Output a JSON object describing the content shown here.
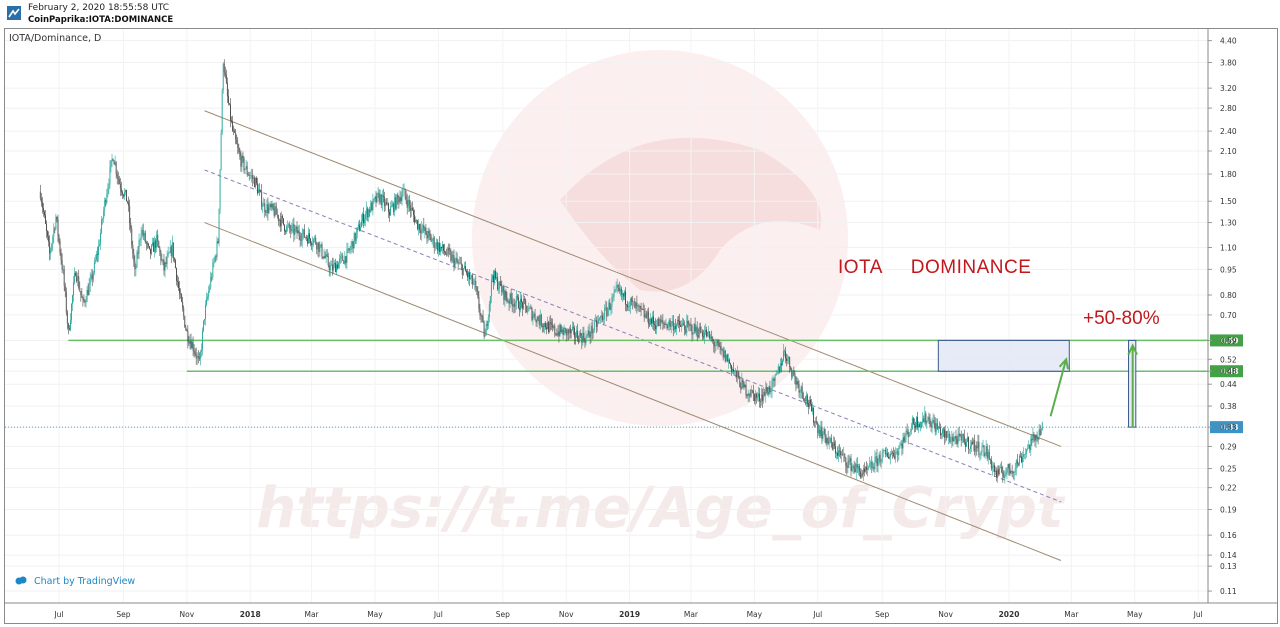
{
  "header": {
    "date": "February 2, 2020 18:55:58 UTC",
    "source": "CoinPaprika:IOTA:DOMINANCE"
  },
  "chart_data": {
    "type": "candlestick",
    "symbol": "IOTA/Dominance, D",
    "title": "",
    "xlabel": "",
    "ylabel": "",
    "scale": "log",
    "ylim": [
      0.105,
      4.6
    ],
    "y_ticks": [
      "4.40",
      "3.80",
      "3.20",
      "2.80",
      "2.40",
      "2.10",
      "1.80",
      "1.50",
      "1.30",
      "1.10",
      "0.95",
      "0.80",
      "0.70",
      "0.59",
      "0.52",
      "0.48",
      "0.44",
      "0.38",
      "0.33",
      "0.29",
      "0.25",
      "0.22",
      "0.19",
      "0.16",
      "0.14",
      "0.13",
      "0.11"
    ],
    "x_ticks": [
      {
        "label": "Jul",
        "date": "2017-07-01"
      },
      {
        "label": "Sep",
        "date": "2017-09-01"
      },
      {
        "label": "Nov",
        "date": "2017-11-01"
      },
      {
        "label": "2018",
        "date": "2018-01-01"
      },
      {
        "label": "Mar",
        "date": "2018-03-01"
      },
      {
        "label": "May",
        "date": "2018-05-01"
      },
      {
        "label": "Jul",
        "date": "2018-07-01"
      },
      {
        "label": "Sep",
        "date": "2018-09-01"
      },
      {
        "label": "Nov",
        "date": "2018-11-01"
      },
      {
        "label": "2019",
        "date": "2019-01-01"
      },
      {
        "label": "Mar",
        "date": "2019-03-01"
      },
      {
        "label": "May",
        "date": "2019-05-01"
      },
      {
        "label": "Jul",
        "date": "2019-07-01"
      },
      {
        "label": "Sep",
        "date": "2019-09-01"
      },
      {
        "label": "Nov",
        "date": "2019-11-01"
      },
      {
        "label": "2020",
        "date": "2020-01-01"
      },
      {
        "label": "Mar",
        "date": "2020-03-01"
      },
      {
        "label": "May",
        "date": "2020-05-01"
      },
      {
        "label": "Jul",
        "date": "2020-07-01"
      }
    ],
    "price_path": [
      [
        "2017-06-13",
        1.6
      ],
      [
        "2017-06-22",
        1.05
      ],
      [
        "2017-06-28",
        1.35
      ],
      [
        "2017-07-05",
        0.92
      ],
      [
        "2017-07-10",
        0.62
      ],
      [
        "2017-07-17",
        0.95
      ],
      [
        "2017-07-24",
        0.75
      ],
      [
        "2017-08-01",
        0.88
      ],
      [
        "2017-08-08",
        1.1
      ],
      [
        "2017-08-15",
        1.55
      ],
      [
        "2017-08-22",
        2.05
      ],
      [
        "2017-08-28",
        1.7
      ],
      [
        "2017-09-05",
        1.5
      ],
      [
        "2017-09-12",
        0.92
      ],
      [
        "2017-09-18",
        1.25
      ],
      [
        "2017-09-26",
        1.05
      ],
      [
        "2017-10-03",
        1.15
      ],
      [
        "2017-10-10",
        0.95
      ],
      [
        "2017-10-18",
        1.1
      ],
      [
        "2017-10-25",
        0.8
      ],
      [
        "2017-11-01",
        0.62
      ],
      [
        "2017-11-08",
        0.56
      ],
      [
        "2017-11-13",
        0.5
      ],
      [
        "2017-11-18",
        0.7
      ],
      [
        "2017-11-25",
        0.92
      ],
      [
        "2017-12-01",
        1.15
      ],
      [
        "2017-12-06",
        3.9
      ],
      [
        "2017-12-10",
        3.0
      ],
      [
        "2017-12-15",
        2.4
      ],
      [
        "2017-12-22",
        2.0
      ],
      [
        "2017-12-28",
        1.85
      ],
      [
        "2018-01-06",
        1.7
      ],
      [
        "2018-01-14",
        1.45
      ],
      [
        "2018-01-24",
        1.4
      ],
      [
        "2018-02-05",
        1.25
      ],
      [
        "2018-02-20",
        1.2
      ],
      [
        "2018-03-05",
        1.15
      ],
      [
        "2018-03-20",
        0.95
      ],
      [
        "2018-04-05",
        1.05
      ],
      [
        "2018-04-20",
        1.35
      ],
      [
        "2018-05-05",
        1.55
      ],
      [
        "2018-05-15",
        1.4
      ],
      [
        "2018-05-28",
        1.6
      ],
      [
        "2018-06-10",
        1.3
      ],
      [
        "2018-06-25",
        1.15
      ],
      [
        "2018-07-10",
        1.05
      ],
      [
        "2018-07-25",
        0.95
      ],
      [
        "2018-08-05",
        0.85
      ],
      [
        "2018-08-15",
        0.6
      ],
      [
        "2018-08-22",
        0.92
      ],
      [
        "2018-09-05",
        0.78
      ],
      [
        "2018-09-20",
        0.75
      ],
      [
        "2018-10-05",
        0.68
      ],
      [
        "2018-10-20",
        0.63
      ],
      [
        "2018-11-05",
        0.62
      ],
      [
        "2018-11-20",
        0.6
      ],
      [
        "2018-12-10",
        0.72
      ],
      [
        "2018-12-20",
        0.82
      ],
      [
        "2019-01-10",
        0.72
      ],
      [
        "2019-01-25",
        0.66
      ],
      [
        "2019-02-10",
        0.66
      ],
      [
        "2019-02-28",
        0.64
      ],
      [
        "2019-03-15",
        0.62
      ],
      [
        "2019-04-05",
        0.52
      ],
      [
        "2019-04-20",
        0.43
      ],
      [
        "2019-05-05",
        0.4
      ],
      [
        "2019-05-20",
        0.44
      ],
      [
        "2019-05-30",
        0.55
      ],
      [
        "2019-06-10",
        0.45
      ],
      [
        "2019-06-20",
        0.4
      ],
      [
        "2019-07-01",
        0.33
      ],
      [
        "2019-07-15",
        0.29
      ],
      [
        "2019-07-30",
        0.26
      ],
      [
        "2019-08-15",
        0.24
      ],
      [
        "2019-08-30",
        0.27
      ],
      [
        "2019-09-15",
        0.28
      ],
      [
        "2019-10-01",
        0.34
      ],
      [
        "2019-10-15",
        0.35
      ],
      [
        "2019-11-01",
        0.31
      ],
      [
        "2019-11-20",
        0.3
      ],
      [
        "2019-12-10",
        0.28
      ],
      [
        "2019-12-20",
        0.24
      ],
      [
        "2020-01-05",
        0.25
      ],
      [
        "2020-01-20",
        0.29
      ],
      [
        "2020-02-02",
        0.33
      ]
    ],
    "channel": {
      "upper": [
        [
          "2017-11-18",
          2.75
        ],
        [
          "2020-02-20",
          0.29
        ]
      ],
      "mid": [
        [
          "2017-11-18",
          1.85
        ],
        [
          "2020-02-20",
          0.2
        ]
      ],
      "lower": [
        [
          "2017-11-18",
          1.3
        ],
        [
          "2020-02-20",
          0.135
        ]
      ]
    },
    "horizontal_levels": [
      {
        "value": 0.59,
        "label": "0.59",
        "start": "2017-07-10"
      },
      {
        "value": 0.48,
        "label": "0.48",
        "start": "2017-11-01"
      }
    ],
    "current_price": {
      "value": 0.33,
      "label": "0.33"
    },
    "target_box": {
      "x0": "2019-10-25",
      "x1": "2020-02-28",
      "y0": 0.48,
      "y1": 0.59
    },
    "range_box": {
      "x0": "2020-04-25",
      "x1": "2020-05-02",
      "y0": 0.33,
      "y1": 0.59
    },
    "arrows": [
      {
        "from": [
          "2020-02-10",
          0.355
        ],
        "to": [
          "2020-02-25",
          0.52
        ]
      },
      {
        "from": [
          "2020-04-29",
          0.33
        ],
        "to": [
          "2020-04-29",
          0.57
        ]
      }
    ],
    "annotations": {
      "title": "IOTA     DOMINANCE",
      "projection": "+50-80%"
    },
    "watermark": "https://t.me/Age_of_Crypt",
    "attribution": "Chart by TradingView",
    "colors": {
      "up": "#26a69a",
      "down": "#4a4a4a",
      "channel": "#a08a72",
      "mid": "#8e7fb8",
      "level": "#6abf69",
      "current": "#5aa0c8",
      "box_fill": "#e3e8f6",
      "box_stroke": "#3d5a8a",
      "arrow": "#5aaf4a",
      "annotation": "#c0181d"
    }
  }
}
